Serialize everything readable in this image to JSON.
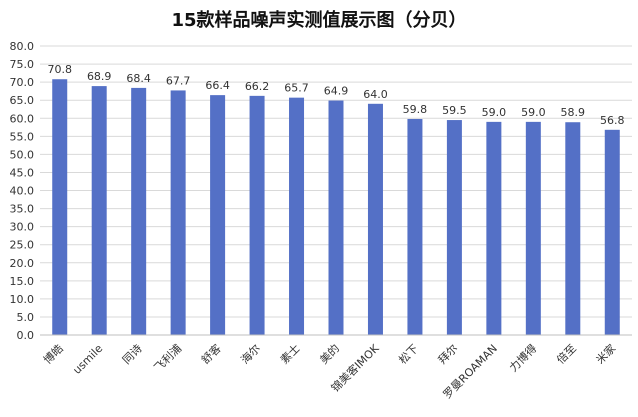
{
  "chart_data": {
    "type": "bar",
    "title": "15款样品噪声实测值展示图（分贝）",
    "xlabel": "",
    "ylabel": "",
    "ylim": [
      0,
      80
    ],
    "yticks": [
      "0.0",
      "5.0",
      "10.0",
      "15.0",
      "20.0",
      "25.0",
      "30.0",
      "35.0",
      "40.0",
      "45.0",
      "50.0",
      "55.0",
      "60.0",
      "65.0",
      "70.0",
      "75.0",
      "80.0"
    ],
    "grid": true,
    "bar_color": "#5470c6",
    "categories": [
      "博皓",
      "usmile",
      "同诗",
      "飞利浦",
      "舒客",
      "海尔",
      "素士",
      "美的",
      "锦美客IMOK",
      "松下",
      "拜尔",
      "罗曼ROAMAN",
      "力博得",
      "倍至",
      "米家"
    ],
    "values": [
      70.8,
      68.9,
      68.4,
      67.7,
      66.4,
      66.2,
      65.7,
      64.9,
      64.0,
      59.8,
      59.5,
      59.0,
      59.0,
      58.9,
      56.8
    ],
    "value_labels": [
      "70.8",
      "68.9",
      "68.4",
      "67.7",
      "66.4",
      "66.2",
      "65.7",
      "64.9",
      "64.0",
      "59.8",
      "59.5",
      "59.0",
      "59.0",
      "58.9",
      "56.8"
    ]
  }
}
